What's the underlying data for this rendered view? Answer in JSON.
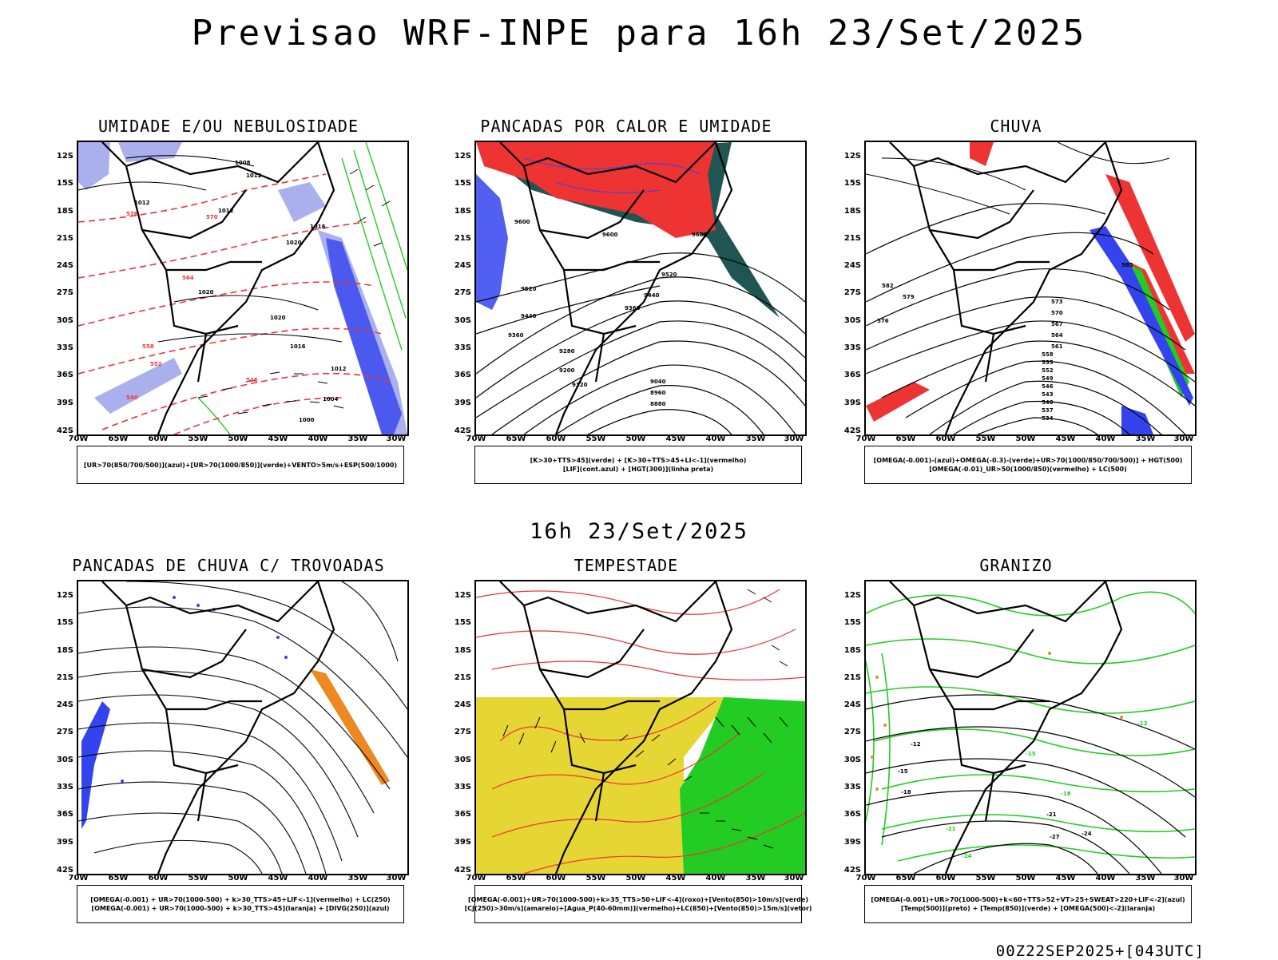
{
  "header": {
    "title": "Previsao WRF-INPE  para 16h 23/Set/2025",
    "mid_date": "16h 23/Set/2025",
    "footer": "00Z22SEP2025+[043UTC]"
  },
  "axes": {
    "lat_labels": [
      "12S",
      "15S",
      "18S",
      "21S",
      "24S",
      "27S",
      "30S",
      "33S",
      "36S",
      "39S",
      "42S"
    ],
    "lon_labels": [
      "70W",
      "65W",
      "60W",
      "55W",
      "50W",
      "45W",
      "40W",
      "35W",
      "30W"
    ]
  },
  "panels": [
    {
      "title": "UMIDADE E/OU NEBULOSIDADE",
      "legend": [
        "[UR>70(850/700/500)](azul)+[UR>70(1000/850)](verde)+VENTO>5m/s+ESP(500/1000)"
      ],
      "contour_labels": [
        "1008",
        "1012",
        "1012",
        "1012",
        "1016",
        "1020",
        "1020",
        "1020",
        "1016",
        "1012",
        "1004",
        "1000",
        "576",
        "570",
        "564",
        "558",
        "552",
        "546",
        "540"
      ]
    },
    {
      "title": "PANCADAS POR CALOR E UMIDADE",
      "legend": [
        "[K>30+TTS>45](verde) + [K>30+TTS>45+LI<-1](vermelho)",
        "[LIF](cont.azul) + [HGT(300)](linha preta)"
      ],
      "contour_labels": [
        "9600",
        "9600",
        "9600",
        "9520",
        "9520",
        "9440",
        "9440",
        "9360",
        "9360",
        "9280",
        "9200",
        "9120",
        "9040",
        "8960",
        "8880"
      ]
    },
    {
      "title": "CHUVA",
      "legend": [
        "[OMEGA(-0.001)-(azul)+OMEGA(-0.3)-(verde)+UR>70(1000/850/700/500)] + HGT(500)",
        "[OMEGA(-0.01)_UR>50(1000/850)(vermelho) + LC(500)"
      ],
      "contour_labels": [
        "585",
        "582",
        "579",
        "576",
        "573",
        "570",
        "567",
        "564",
        "561",
        "558",
        "555",
        "552",
        "549",
        "546",
        "543",
        "540",
        "537",
        "534"
      ]
    },
    {
      "title": "PANCADAS DE CHUVA C/ TROVOADAS",
      "legend": [
        "[OMEGA(-0.001) + UR>70(1000-500) + k>30_TTS>45+LIF<-1](vermelho) + LC(250)",
        "[OMEGA(-0.001) + UR>70(1000-500) + k>30_TTS>45](laranja) + [DIVG(250)](azul)"
      ],
      "contour_labels": []
    },
    {
      "title": "TEMPESTADE",
      "legend": [
        "[OMEGA(-0.001)+UR>70(1000-500)+k>35_TTS>50+LIF<-4](roxo)+[Vento(850)>10m/s](verde)",
        "[CJ(250)>30m/s](amarelo)+[Agua_P(40-60mm)](vermelho)+LC(850)+[Vento(850)>15m/s](vetor)"
      ],
      "contour_labels": []
    },
    {
      "title": "GRANIZO",
      "legend": [
        "[OMEGA(-0.001)+UR>70(1000-500)+k<60+TTS>52+VT>25+SWEAT>220+LIF<-2](azul)",
        "[Temp(500)](preto) + [Temp(850)](verde) + [OMEGA(500)<-2](laranja)"
      ],
      "contour_labels": [
        "-12",
        "-15",
        "-18",
        "-21",
        "-24",
        "-27",
        "-12",
        "-15",
        "-18",
        "-21",
        "-24"
      ]
    }
  ],
  "colors": {
    "blue_light": "#aab0ee",
    "blue": "#3344ee",
    "green": "#22cc22",
    "red": "#ee3333",
    "orange": "#ee8822",
    "yellow": "#e6d633",
    "dark_teal": "#1f5552",
    "contour": "#000000"
  }
}
